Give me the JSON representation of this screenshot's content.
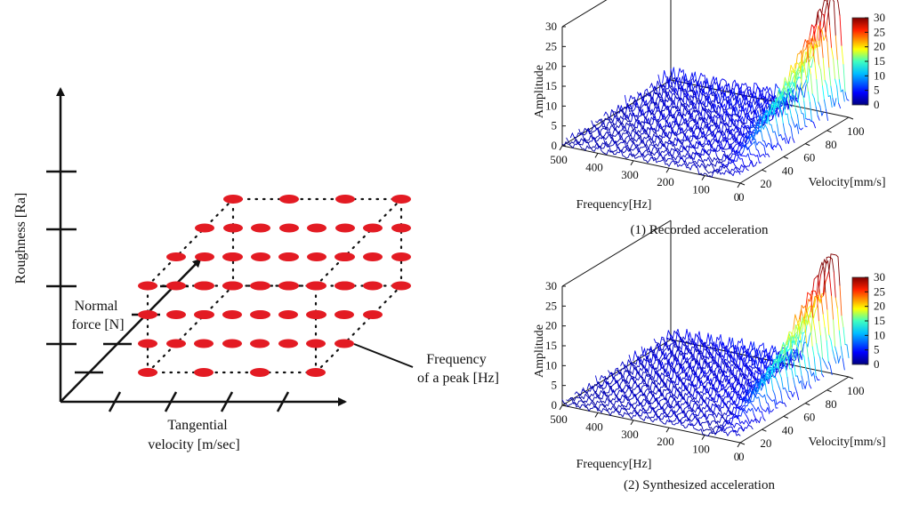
{
  "left_diagram": {
    "y_axis_label": "Roughness [Ra]",
    "z_axis_label_line1": "Normal",
    "z_axis_label_line2": "force [N]",
    "x_axis_label_line1": "Tangential",
    "x_axis_label_line2": "velocity [m/sec]",
    "peak_label_line1": "Frequency",
    "peak_label_line2": "of a peak [Hz]",
    "grid_levels": {
      "roughness": 4,
      "velocity": 4,
      "normal_force": 4
    },
    "colors": {
      "dot": "#e31b23",
      "axis": "#111111"
    }
  },
  "plots": [
    {
      "caption": "(1) Recorded acceleration",
      "amplitude_label": "Amplitude",
      "frequency_label": "Frequency[Hz]",
      "velocity_label": "Velocity[mm/s]",
      "amplitude_ticks": [
        "0",
        "5",
        "10",
        "15",
        "20",
        "25",
        "30"
      ],
      "frequency_ticks": [
        "500",
        "400",
        "300",
        "200",
        "100",
        "0"
      ],
      "velocity_ticks": [
        "0",
        "20",
        "40",
        "60",
        "80",
        "100"
      ],
      "colorbar_ticks": [
        "30",
        "25",
        "20",
        "15",
        "10",
        "5",
        "0"
      ]
    },
    {
      "caption": "(2) Synthesized acceleration",
      "amplitude_label": "Amplitude",
      "frequency_label": "Frequency[Hz]",
      "velocity_label": "Velocity[mm/s]",
      "amplitude_ticks": [
        "0",
        "5",
        "10",
        "15",
        "20",
        "25",
        "30"
      ],
      "frequency_ticks": [
        "500",
        "400",
        "300",
        "200",
        "100",
        "0"
      ],
      "velocity_ticks": [
        "0",
        "20",
        "40",
        "60",
        "80",
        "100"
      ],
      "colorbar_ticks": [
        "30",
        "25",
        "20",
        "15",
        "10",
        "5",
        "0"
      ]
    }
  ],
  "waterfall": {
    "amplitude_range": [
      0,
      30
    ],
    "frequency_range": [
      0,
      500
    ],
    "velocity_range": [
      0,
      100
    ],
    "colormap": "jet",
    "peak_frequency_hz": 40,
    "peak_amplitude": 30
  }
}
